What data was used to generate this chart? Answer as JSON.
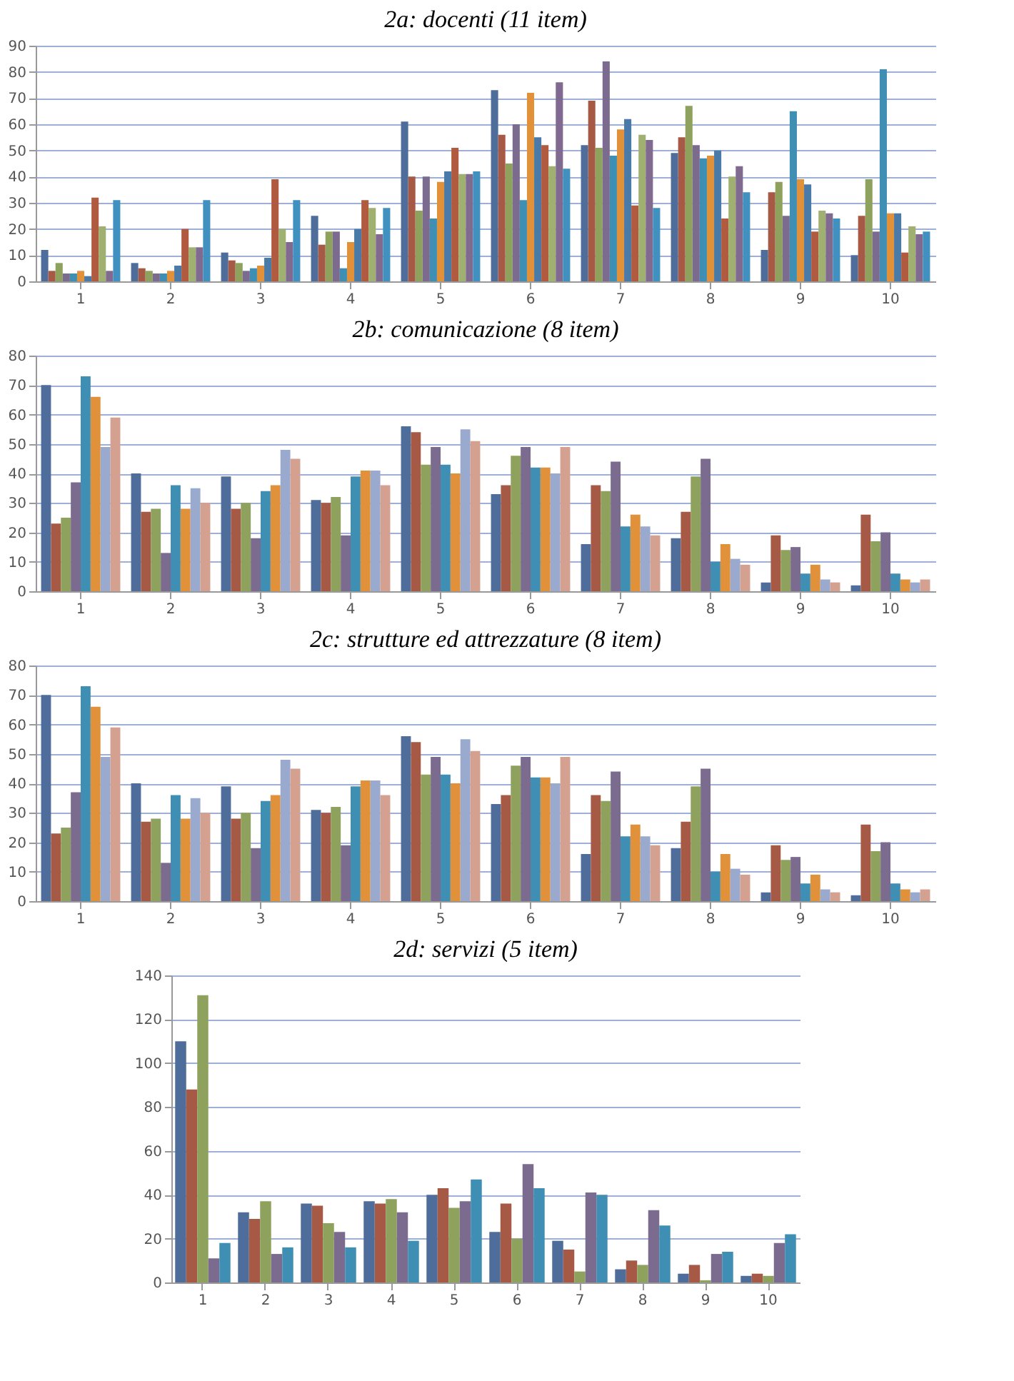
{
  "chart_data": [
    {
      "type": "bar",
      "title": "2a: docenti (11 item)",
      "categories": [
        "1",
        "2",
        "3",
        "4",
        "5",
        "6",
        "7",
        "8",
        "9",
        "10"
      ],
      "ylim": [
        0,
        90
      ],
      "yticks": [
        0,
        10,
        20,
        30,
        40,
        50,
        60,
        70,
        80,
        90
      ],
      "grid": "y",
      "series": [
        {
          "color": "#4f6d9a",
          "values": [
            12,
            7,
            11,
            25,
            61,
            73,
            52,
            49,
            12,
            10
          ]
        },
        {
          "color": "#a65a45",
          "values": [
            4,
            5,
            8,
            14,
            40,
            56,
            69,
            55,
            34,
            25
          ]
        },
        {
          "color": "#8ea25e",
          "values": [
            7,
            4,
            7,
            19,
            27,
            45,
            51,
            67,
            38,
            39
          ]
        },
        {
          "color": "#7b6b8f",
          "values": [
            3,
            3,
            4,
            19,
            40,
            60,
            84,
            52,
            25,
            19
          ]
        },
        {
          "color": "#3f8fb5",
          "values": [
            3,
            3,
            5,
            5,
            24,
            31,
            48,
            47,
            65,
            81
          ]
        },
        {
          "color": "#e0913a",
          "values": [
            4,
            4,
            6,
            15,
            38,
            72,
            58,
            48,
            39,
            26
          ]
        },
        {
          "color": "#4a7ba8",
          "values": [
            2,
            6,
            9,
            20,
            42,
            55,
            62,
            50,
            37,
            26
          ]
        },
        {
          "color": "#b05a40",
          "values": [
            32,
            20,
            39,
            31,
            51,
            52,
            29,
            24,
            19,
            11
          ]
        },
        {
          "color": "#a0b070",
          "values": [
            21,
            13,
            20,
            28,
            41,
            44,
            56,
            40,
            27,
            21
          ]
        },
        {
          "color": "#806a90",
          "values": [
            4,
            13,
            15,
            18,
            41,
            76,
            54,
            44,
            26,
            18
          ]
        },
        {
          "color": "#4090c0",
          "values": [
            31,
            31,
            31,
            28,
            42,
            43,
            28,
            34,
            24,
            19
          ]
        }
      ]
    },
    {
      "type": "bar",
      "title": "2b: comunicazione (8 item)",
      "categories": [
        "1",
        "2",
        "3",
        "4",
        "5",
        "6",
        "7",
        "8",
        "9",
        "10"
      ],
      "ylim": [
        0,
        80
      ],
      "yticks": [
        0,
        10,
        20,
        30,
        40,
        50,
        60,
        70,
        80
      ],
      "grid": "y",
      "series": [
        {
          "color": "#4f6d9a",
          "values": [
            70,
            40,
            39,
            31,
            56,
            33,
            16,
            18,
            3,
            2
          ]
        },
        {
          "color": "#a65a45",
          "values": [
            23,
            27,
            28,
            30,
            54,
            36,
            36,
            27,
            19,
            26
          ]
        },
        {
          "color": "#8ea25e",
          "values": [
            25,
            28,
            30,
            32,
            43,
            46,
            34,
            39,
            14,
            17
          ]
        },
        {
          "color": "#7b6b8f",
          "values": [
            37,
            13,
            18,
            19,
            49,
            49,
            44,
            45,
            15,
            20
          ]
        },
        {
          "color": "#3f8fb5",
          "values": [
            73,
            36,
            34,
            39,
            43,
            42,
            22,
            10,
            6,
            6
          ]
        },
        {
          "color": "#e0913a",
          "values": [
            66,
            28,
            36,
            41,
            40,
            42,
            26,
            16,
            9,
            4
          ]
        },
        {
          "color": "#9aaace",
          "values": [
            49,
            35,
            48,
            41,
            55,
            40,
            22,
            11,
            4,
            3
          ]
        },
        {
          "color": "#d4a090",
          "values": [
            59,
            30,
            45,
            36,
            51,
            49,
            19,
            9,
            3,
            4
          ]
        }
      ]
    },
    {
      "type": "bar",
      "title": "2c: strutture ed attrezzature (8 item)",
      "categories": [
        "1",
        "2",
        "3",
        "4",
        "5",
        "6",
        "7",
        "8",
        "9",
        "10"
      ],
      "ylim": [
        0,
        80
      ],
      "yticks": [
        0,
        10,
        20,
        30,
        40,
        50,
        60,
        70,
        80
      ],
      "grid": "y",
      "series": [
        {
          "color": "#4f6d9a",
          "values": [
            70,
            40,
            39,
            31,
            56,
            33,
            16,
            18,
            3,
            2
          ]
        },
        {
          "color": "#a65a45",
          "values": [
            23,
            27,
            28,
            30,
            54,
            36,
            36,
            27,
            19,
            26
          ]
        },
        {
          "color": "#8ea25e",
          "values": [
            25,
            28,
            30,
            32,
            43,
            46,
            34,
            39,
            14,
            17
          ]
        },
        {
          "color": "#7b6b8f",
          "values": [
            37,
            13,
            18,
            19,
            49,
            49,
            44,
            45,
            15,
            20
          ]
        },
        {
          "color": "#3f8fb5",
          "values": [
            73,
            36,
            34,
            39,
            43,
            42,
            22,
            10,
            6,
            6
          ]
        },
        {
          "color": "#e0913a",
          "values": [
            66,
            28,
            36,
            41,
            40,
            42,
            26,
            16,
            9,
            4
          ]
        },
        {
          "color": "#9aaace",
          "values": [
            49,
            35,
            48,
            41,
            55,
            40,
            22,
            11,
            4,
            3
          ]
        },
        {
          "color": "#d4a090",
          "values": [
            59,
            30,
            45,
            36,
            51,
            49,
            19,
            9,
            3,
            4
          ]
        }
      ]
    },
    {
      "type": "bar",
      "title": "2d: servizi (5 item)",
      "categories": [
        "1",
        "2",
        "3",
        "4",
        "5",
        "6",
        "7",
        "8",
        "9",
        "10"
      ],
      "ylim": [
        0,
        140
      ],
      "yticks": [
        0,
        20,
        40,
        60,
        80,
        100,
        120,
        140
      ],
      "grid": "y",
      "series": [
        {
          "color": "#4f6d9a",
          "values": [
            110,
            32,
            36,
            37,
            40,
            23,
            19,
            6,
            4,
            3
          ]
        },
        {
          "color": "#a65a45",
          "values": [
            88,
            29,
            35,
            36,
            43,
            36,
            15,
            10,
            8,
            4
          ]
        },
        {
          "color": "#8ea25e",
          "values": [
            131,
            37,
            27,
            38,
            34,
            20,
            5,
            8,
            1,
            3
          ]
        },
        {
          "color": "#7b6b8f",
          "values": [
            11,
            13,
            23,
            32,
            37,
            54,
            41,
            33,
            13,
            18
          ]
        },
        {
          "color": "#3f8fb5",
          "values": [
            18,
            16,
            16,
            19,
            47,
            43,
            40,
            26,
            14,
            22
          ]
        }
      ]
    }
  ]
}
